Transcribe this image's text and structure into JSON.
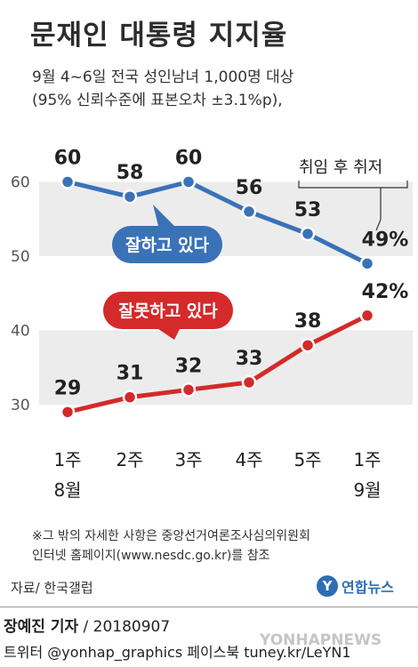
{
  "title": "문재인 대통령 지지율",
  "subtitle_line1": "9월 4~6일 전국 성인남녀 1,000명 대상",
  "subtitle_line2": "(95% 신뢰수준에 표본오차 ±3.1%p),",
  "chart_data": {
    "type": "line",
    "categories": [
      "1주\n8월",
      "2주",
      "3주",
      "4주",
      "5주",
      "1주\n9월"
    ],
    "series": [
      {
        "name": "잘하고 있다",
        "values": [
          60,
          58,
          60,
          56,
          53,
          49
        ],
        "labels": [
          "60",
          "58",
          "60",
          "56",
          "53",
          "49%"
        ],
        "color": "#3a72b8"
      },
      {
        "name": "잘못하고 있다",
        "values": [
          29,
          31,
          32,
          33,
          38,
          42
        ],
        "labels": [
          "29",
          "31",
          "32",
          "33",
          "38",
          "42%"
        ],
        "color": "#d42a2a"
      }
    ],
    "yticks": [
      60,
      50,
      40,
      30
    ],
    "ylim": [
      25,
      65
    ],
    "annotation": "취임 후 취저",
    "grid": "alternating gray bands"
  },
  "note_line1": "※그 밖의 자세한 사항은 중앙선거여론조사심의위원회",
  "note_line2": "인터넷 홈페이지(www.nesdc.go.kr)를 참조",
  "source": "자료/ 한국갤럽",
  "logo": {
    "mark": "Y",
    "text": "연합뉴스"
  },
  "byline_name": "장예진 기자",
  "byline_rest": " / 20180907",
  "footer": "트위터 @yonhap_graphics  페이스북 tuney.kr/LeYN1",
  "watermark": "YONHAPNEWS"
}
